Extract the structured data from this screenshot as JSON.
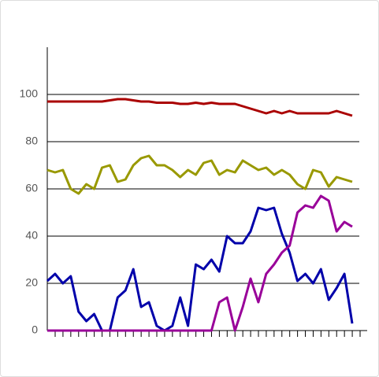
{
  "chart_data": {
    "type": "line",
    "categories": [
      null,
      null,
      null,
      null,
      null,
      null,
      null,
      null,
      null,
      null,
      null,
      null,
      null,
      null,
      null,
      null,
      null,
      null,
      null,
      null,
      null,
      null,
      null,
      null,
      null,
      null,
      null,
      null,
      null,
      null,
      null,
      null,
      null,
      null,
      null,
      null,
      null,
      null,
      null,
      null
    ],
    "series": [
      {
        "color": "#aa0000",
        "values": [
          97,
          97,
          97,
          97,
          97,
          97,
          97,
          97,
          97.5,
          98,
          98,
          97.5,
          97,
          97,
          96.5,
          96.5,
          96.5,
          96,
          96,
          96.5,
          96,
          96.5,
          96,
          96,
          96,
          95,
          94,
          93,
          92,
          93,
          92,
          93,
          92,
          92,
          92,
          92,
          92,
          93,
          92,
          91
        ]
      },
      {
        "color": "#999900",
        "values": [
          68,
          67,
          68,
          60,
          58,
          62,
          60,
          69,
          70,
          63,
          64,
          70,
          73,
          74,
          70,
          70,
          68,
          65,
          68,
          66,
          71,
          72,
          66,
          68,
          67,
          72,
          70,
          68,
          69,
          66,
          68,
          66,
          62,
          60,
          68,
          67,
          61,
          65,
          64,
          63
        ]
      },
      {
        "color": "#0000aa",
        "values": [
          21,
          24,
          20,
          23,
          8,
          4,
          7,
          0,
          0,
          14,
          17,
          26,
          10,
          12,
          2,
          0,
          2,
          14,
          2,
          28,
          26,
          30,
          25,
          40,
          37,
          37,
          42,
          52,
          51,
          52,
          41,
          33,
          21,
          24,
          20,
          26,
          13,
          18,
          24,
          3
        ]
      },
      {
        "color": "#990099",
        "values": [
          0,
          0,
          0,
          0,
          0,
          0,
          0,
          0,
          0,
          0,
          0,
          0,
          0,
          0,
          0,
          0,
          0,
          0,
          0,
          0,
          0,
          0,
          12,
          14,
          0,
          10,
          22,
          12,
          24,
          28,
          33,
          36,
          50,
          53,
          52,
          57,
          55,
          42,
          46,
          44
        ]
      }
    ],
    "ylim": [
      0,
      120
    ],
    "yticks": [
      0,
      20,
      40,
      60,
      80,
      100
    ],
    "grid": true
  }
}
